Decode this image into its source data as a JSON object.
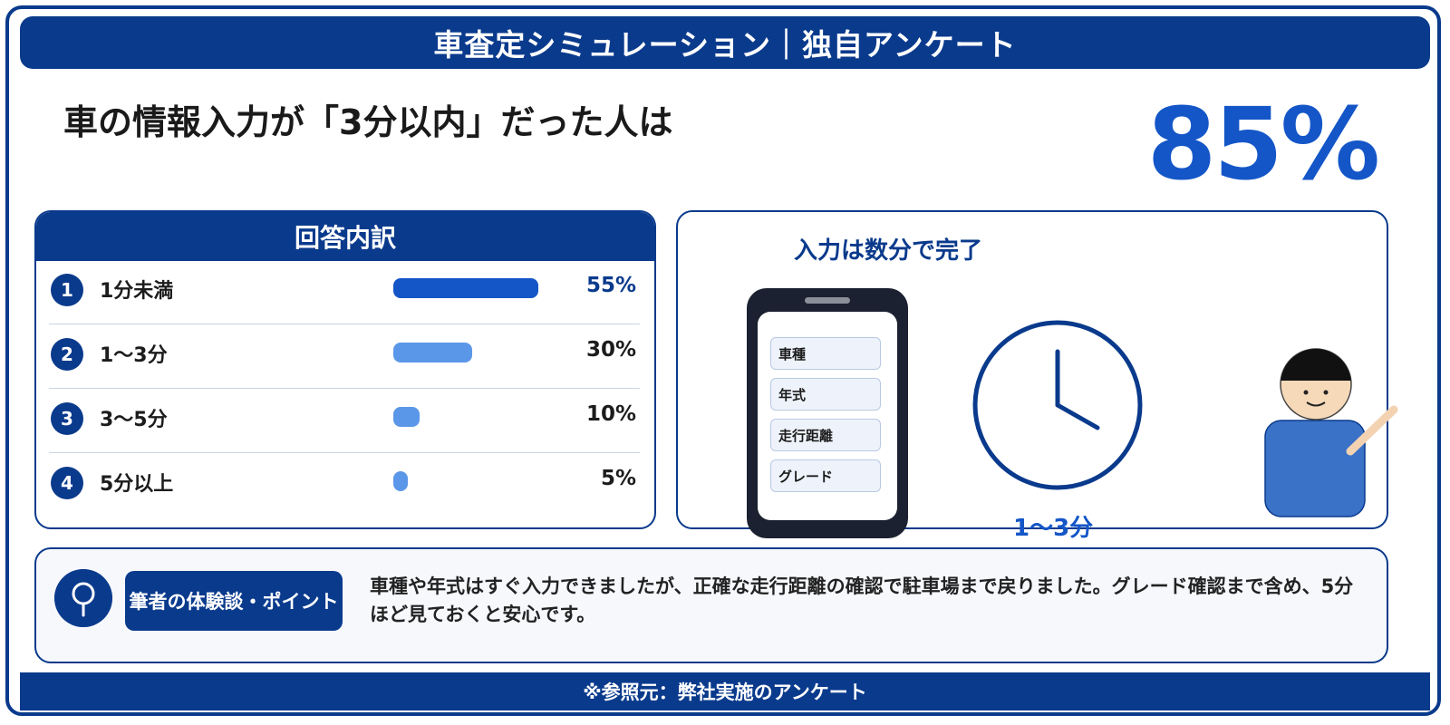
{
  "header": {
    "title": "車査定シミュレーション｜独自アンケート"
  },
  "headline": {
    "text": "車の情報入力が「3分以内」だった人は",
    "highlight_value": "85%"
  },
  "breakdown": {
    "title": "回答内訳",
    "rows": [
      {
        "rank": "1",
        "label": "1分未満",
        "value_text": "55%"
      },
      {
        "rank": "2",
        "label": "1〜3分",
        "value_text": "30%"
      },
      {
        "rank": "3",
        "label": "3〜5分",
        "value_text": "10%"
      },
      {
        "rank": "4",
        "label": "5分以上",
        "value_text": "5%"
      }
    ]
  },
  "chart_data": {
    "type": "bar",
    "title": "回答内訳",
    "categories": [
      "1分未満",
      "1〜3分",
      "3〜5分",
      "5分以上"
    ],
    "values": [
      55,
      30,
      10,
      5
    ],
    "ylim": [
      0,
      100
    ],
    "colors": [
      "#1456c8",
      "#5b97e8",
      "#5b97e8",
      "#5b97e8"
    ]
  },
  "illustration": {
    "title": "入力は数分で完了",
    "form_fields": [
      "車種",
      "年式",
      "走行距離",
      "グレード"
    ],
    "clock_caption": "1〜3分"
  },
  "tip": {
    "tag": "筆者の体験談・ポイント",
    "text": "車種や年式はすぐ入力できましたが、正確な走行距離の確認で駐車場まで戻りました。グレード確認まで含め、5分ほど見ておくと安心です。"
  },
  "footer": {
    "text": "※参照元：弊社実施のアンケート"
  },
  "colors": {
    "primary": "#0a3a8c",
    "accent": "#1456c8",
    "bar_light": "#5b97e8"
  }
}
